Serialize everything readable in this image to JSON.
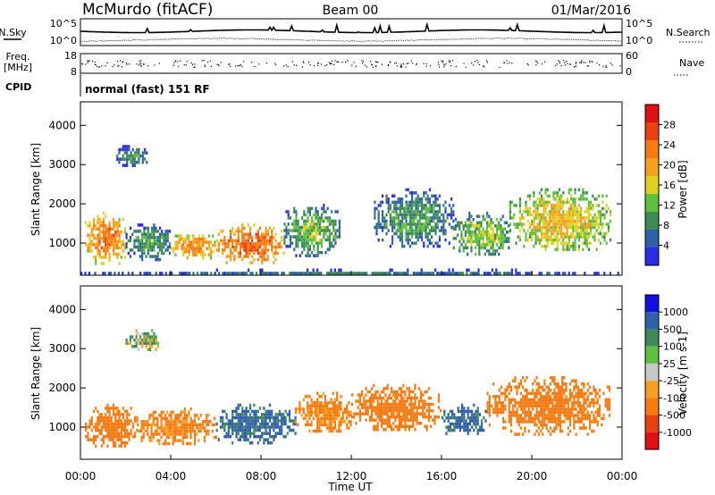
{
  "header": {
    "station": "McMurdo (fitACF)",
    "beam": "Beam 00",
    "date": "01/Mar/2016"
  },
  "noise_panel": {
    "left_label": "N.Sky",
    "right_label": "N.Search",
    "ticks_left": [
      "10^5",
      "10^0"
    ],
    "ticks_right": [
      "10^5",
      "10^0"
    ]
  },
  "freq_panel": {
    "left_label": "Freq.",
    "left_unit": "[MHz]",
    "right_label": "Nave",
    "ticks_left": [
      "18",
      "8"
    ],
    "ticks_right": [
      "60",
      "0"
    ]
  },
  "cpid": {
    "label": "CPID",
    "value": "normal (fast) 151 RF"
  },
  "x_axis": {
    "label": "Time UT",
    "ticks": [
      "00:00",
      "04:00",
      "08:00",
      "12:00",
      "16:00",
      "20:00",
      "00:00"
    ]
  },
  "colors": {
    "power_scale": [
      "#2a2ae8",
      "#2f5fa8",
      "#3c8a55",
      "#5fbf3f",
      "#e0d020",
      "#f5a020",
      "#f57a10",
      "#e84010",
      "#e01010"
    ],
    "velocity_scale": [
      "#1010e0",
      "#2f5fa8",
      "#3c8a55",
      "#5fbf3f",
      "#c8c8c8",
      "#f5a020",
      "#f57a10",
      "#e84010",
      "#e01010"
    ]
  },
  "chart_data": [
    {
      "type": "heatmap",
      "title": "Power",
      "ylabel": "Slant Range [km]",
      "ylim": [
        180,
        4600
      ],
      "yticks": [
        1000,
        2000,
        3000,
        4000
      ],
      "xlim": [
        0,
        24
      ],
      "colorbar": {
        "label": "Power [dB]",
        "ticks": [
          "4",
          "8",
          "12",
          "16",
          "20",
          "24",
          "28"
        ],
        "range": [
          0,
          32
        ]
      },
      "blobs": [
        {
          "t0": 0.2,
          "t1": 2.0,
          "r0": 500,
          "r1": 1800,
          "level": 26
        },
        {
          "t0": 2.0,
          "t1": 4.0,
          "r0": 600,
          "r1": 1500,
          "level": 12
        },
        {
          "t0": 4.0,
          "t1": 6.0,
          "r0": 600,
          "r1": 1300,
          "level": 24
        },
        {
          "t0": 6.0,
          "t1": 9.0,
          "r0": 500,
          "r1": 1500,
          "level": 28
        },
        {
          "t0": 9.0,
          "t1": 11.5,
          "r0": 700,
          "r1": 2000,
          "level": 14
        },
        {
          "t0": 13.0,
          "t1": 16.5,
          "r0": 900,
          "r1": 2400,
          "level": 12
        },
        {
          "t0": 16.5,
          "t1": 19.0,
          "r0": 700,
          "r1": 1800,
          "level": 16
        },
        {
          "t0": 19.0,
          "t1": 23.5,
          "r0": 800,
          "r1": 2400,
          "level": 20
        },
        {
          "t0": 1.5,
          "t1": 3.0,
          "r0": 3000,
          "r1": 3500,
          "level": 10
        },
        {
          "t0": 0.0,
          "t1": 24.0,
          "r0": 200,
          "r1": 350,
          "level": 8
        }
      ]
    },
    {
      "type": "heatmap",
      "title": "Velocity",
      "ylabel": "Slant Range [km]",
      "ylim": [
        180,
        4600
      ],
      "yticks": [
        1000,
        2000,
        3000,
        4000
      ],
      "xlim": [
        0,
        24
      ],
      "colorbar": {
        "label": "Velocity [m s-1]",
        "ticks": [
          "1000",
          "500",
          "100",
          "25",
          "-25",
          "-100",
          "-500",
          "-1000"
        ]
      },
      "blobs": [
        {
          "t0": 0.2,
          "t1": 2.5,
          "r0": 500,
          "r1": 1600,
          "level": -200
        },
        {
          "t0": 2.5,
          "t1": 6.0,
          "r0": 600,
          "r1": 1500,
          "level": -150
        },
        {
          "t0": 6.0,
          "t1": 9.5,
          "r0": 600,
          "r1": 1600,
          "level": 150
        },
        {
          "t0": 9.5,
          "t1": 12.0,
          "r0": 900,
          "r1": 1900,
          "level": -150
        },
        {
          "t0": 12.0,
          "t1": 16.0,
          "r0": 900,
          "r1": 2100,
          "level": -200
        },
        {
          "t0": 16.0,
          "t1": 18.0,
          "r0": 800,
          "r1": 1600,
          "level": 150
        },
        {
          "t0": 18.0,
          "t1": 23.5,
          "r0": 800,
          "r1": 2300,
          "level": -250
        },
        {
          "t0": 2.0,
          "t1": 3.5,
          "r0": 3000,
          "r1": 3500,
          "level": 0
        }
      ]
    }
  ]
}
